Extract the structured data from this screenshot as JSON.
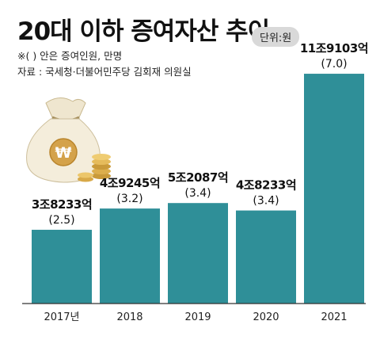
{
  "header": {
    "title": "20대 이하 증여자산 추이",
    "unit": "단위:원",
    "note": "※( ) 안은 증여인원, 만명",
    "source": "자료 : 국세청·더불어민주당 김회재 의원실"
  },
  "illustration": {
    "icon": "money-bag-won-with-coins-icon",
    "symbol": "₩"
  },
  "colors": {
    "bar": "#2f8f98",
    "background": "#ffffff"
  },
  "chart_data": {
    "type": "bar",
    "title": "20대 이하 증여자산 추이",
    "categories": [
      "2017년",
      "2018",
      "2019",
      "2020",
      "2021"
    ],
    "values": [
      38233,
      49245,
      52087,
      48233,
      119103
    ],
    "value_unit": "억원",
    "value_labels": [
      "3조8233억",
      "4조9245억",
      "5조2087억",
      "4조8233억",
      "11조9103억"
    ],
    "secondary_values": [
      2.5,
      3.2,
      3.4,
      3.4,
      7.0
    ],
    "secondary_labels": [
      "(2.5)",
      "(3.2)",
      "(3.4)",
      "(3.4)",
      "(7.0)"
    ],
    "ylim": [
      0,
      122000
    ],
    "grid": false,
    "legend": "none"
  }
}
